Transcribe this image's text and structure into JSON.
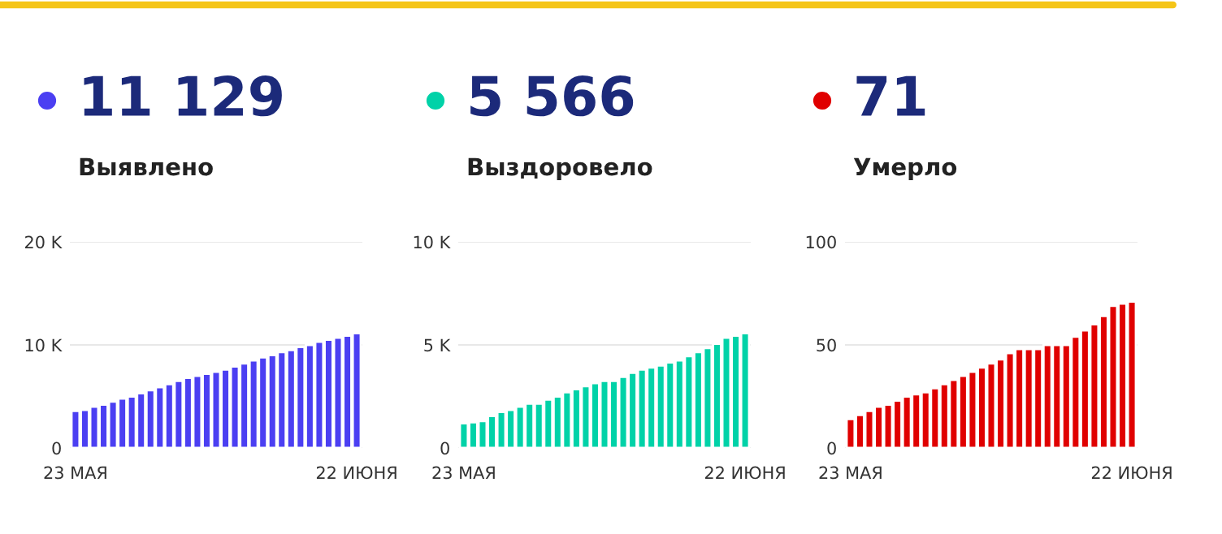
{
  "chart_data": [
    {
      "type": "bar",
      "title": "11 129",
      "subtitle": "Выявлено",
      "color": "#4b3ff2",
      "categories": [
        "23 МАЯ",
        null,
        null,
        null,
        null,
        null,
        null,
        null,
        null,
        null,
        null,
        null,
        null,
        null,
        null,
        null,
        null,
        null,
        null,
        null,
        null,
        null,
        null,
        null,
        null,
        null,
        null,
        null,
        null,
        null,
        "22 ИЮНЯ"
      ],
      "values": [
        3600,
        3700,
        4000,
        4200,
        4500,
        4800,
        5000,
        5300,
        5600,
        5900,
        6200,
        6500,
        6800,
        7000,
        7200,
        7400,
        7600,
        7900,
        8200,
        8500,
        8800,
        9000,
        9300,
        9500,
        9800,
        10000,
        10300,
        10500,
        10700,
        10900,
        11129
      ],
      "ylim": [
        0,
        20000
      ],
      "yticks": [
        {
          "value": 0,
          "label": "0"
        },
        {
          "value": 10000,
          "label": "10 K"
        },
        {
          "value": 20000,
          "label": "20 K"
        }
      ],
      "grid": "y"
    },
    {
      "type": "bar",
      "title": "5 566",
      "subtitle": "Выздоровело",
      "color": "#00d2a8",
      "categories": [
        "23 МАЯ",
        null,
        null,
        null,
        null,
        null,
        null,
        null,
        null,
        null,
        null,
        null,
        null,
        null,
        null,
        null,
        null,
        null,
        null,
        null,
        null,
        null,
        null,
        null,
        null,
        null,
        null,
        null,
        null,
        null,
        "22 ИЮНЯ"
      ],
      "values": [
        1200,
        1250,
        1300,
        1550,
        1750,
        1850,
        2000,
        2150,
        2150,
        2350,
        2500,
        2700,
        2850,
        3000,
        3150,
        3250,
        3250,
        3450,
        3650,
        3800,
        3900,
        4000,
        4150,
        4250,
        4450,
        4650,
        4850,
        5050,
        5350,
        5450,
        5566
      ],
      "ylim": [
        0,
        10000
      ],
      "yticks": [
        {
          "value": 0,
          "label": "0"
        },
        {
          "value": 5000,
          "label": "5 K"
        },
        {
          "value": 10000,
          "label": "10 K"
        }
      ],
      "grid": "y"
    },
    {
      "type": "bar",
      "title": "71",
      "subtitle": "Умерло",
      "color": "#e00000",
      "categories": [
        "23 МАЯ",
        null,
        null,
        null,
        null,
        null,
        null,
        null,
        null,
        null,
        null,
        null,
        null,
        null,
        null,
        null,
        null,
        null,
        null,
        null,
        null,
        null,
        null,
        null,
        null,
        null,
        null,
        null,
        null,
        null,
        "22 ИЮНЯ"
      ],
      "values": [
        14,
        16,
        18,
        20,
        21,
        23,
        25,
        26,
        27,
        29,
        31,
        33,
        35,
        37,
        39,
        41,
        43,
        46,
        48,
        48,
        48,
        50,
        50,
        50,
        54,
        57,
        60,
        64,
        69,
        70,
        71
      ],
      "ylim": [
        0,
        100
      ],
      "yticks": [
        0,
        50,
        100
      ],
      "grid": "y"
    }
  ]
}
